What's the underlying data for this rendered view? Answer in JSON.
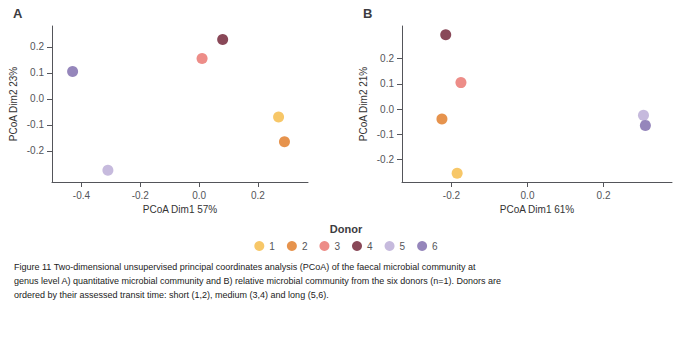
{
  "chart_data": [
    {
      "type": "scatter",
      "title": "A",
      "xlabel": "PCoA Dim1 57%",
      "ylabel": "PCoA Dim2 23%",
      "xlim": [
        -0.5,
        0.37
      ],
      "ylim": [
        -0.32,
        0.28
      ],
      "xticks": [
        -0.4,
        -0.2,
        {
          "value": 0,
          "label": "0.0"
        },
        0.2
      ],
      "yticks": [
        -0.2,
        -0.1,
        {
          "value": 0,
          "label": "0.0"
        },
        0.1,
        0.2
      ],
      "grid": false,
      "series": [
        {
          "name": "1",
          "color": "#F5B942",
          "x": [
            0.27
          ],
          "values": [
            -0.07
          ]
        },
        {
          "name": "2",
          "color": "#E07820",
          "x": [
            0.29
          ],
          "values": [
            -0.165
          ]
        },
        {
          "name": "3",
          "color": "#E8706A",
          "x": [
            0.01
          ],
          "values": [
            0.155
          ]
        },
        {
          "name": "4",
          "color": "#6B1A2E",
          "x": [
            0.08
          ],
          "values": [
            0.228
          ]
        },
        {
          "name": "5",
          "color": "#B8A9D4",
          "x": [
            -0.31
          ],
          "values": [
            -0.275
          ]
        },
        {
          "name": "6",
          "color": "#7B68AA",
          "x": [
            -0.43
          ],
          "values": [
            0.105
          ]
        }
      ]
    },
    {
      "type": "scatter",
      "title": "B",
      "xlabel": "PCoA Dim1 61%",
      "ylabel": "PCoA Dim2 21%",
      "xlim": [
        -0.33,
        0.38
      ],
      "ylim": [
        -0.29,
        0.33
      ],
      "xticks": [
        -0.2,
        {
          "value": 0,
          "label": "0.0"
        },
        0.2
      ],
      "yticks": [
        -0.2,
        -0.1,
        {
          "value": 0,
          "label": "0.0"
        },
        0.1,
        0.2
      ],
      "grid": false,
      "series": [
        {
          "name": "1",
          "color": "#F5B942",
          "x": [
            -0.185
          ],
          "values": [
            -0.255
          ]
        },
        {
          "name": "2",
          "color": "#E07820",
          "x": [
            -0.225
          ],
          "values": [
            -0.04
          ]
        },
        {
          "name": "3",
          "color": "#E8706A",
          "x": [
            -0.175
          ],
          "values": [
            0.105
          ]
        },
        {
          "name": "4",
          "color": "#6B1A2E",
          "x": [
            -0.215
          ],
          "values": [
            0.295
          ]
        },
        {
          "name": "5",
          "color": "#B8A9D4",
          "x": [
            0.305
          ],
          "values": [
            -0.025
          ]
        },
        {
          "name": "6",
          "color": "#7B68AA",
          "x": [
            0.31
          ],
          "values": [
            -0.065
          ]
        }
      ]
    }
  ],
  "legend_title": "Donor",
  "annotations": [
    "Figure 11 Two-dimensional unsupervised principal coordinates analysis (PCoA) of the faecal microbial community at",
    "genus level A) quantitative microbial community and B) relative microbial community from the six donors (n=1). Donors are",
    "ordered by their assessed transit time: short (1,2), medium (3,4) and long (5,6)."
  ]
}
